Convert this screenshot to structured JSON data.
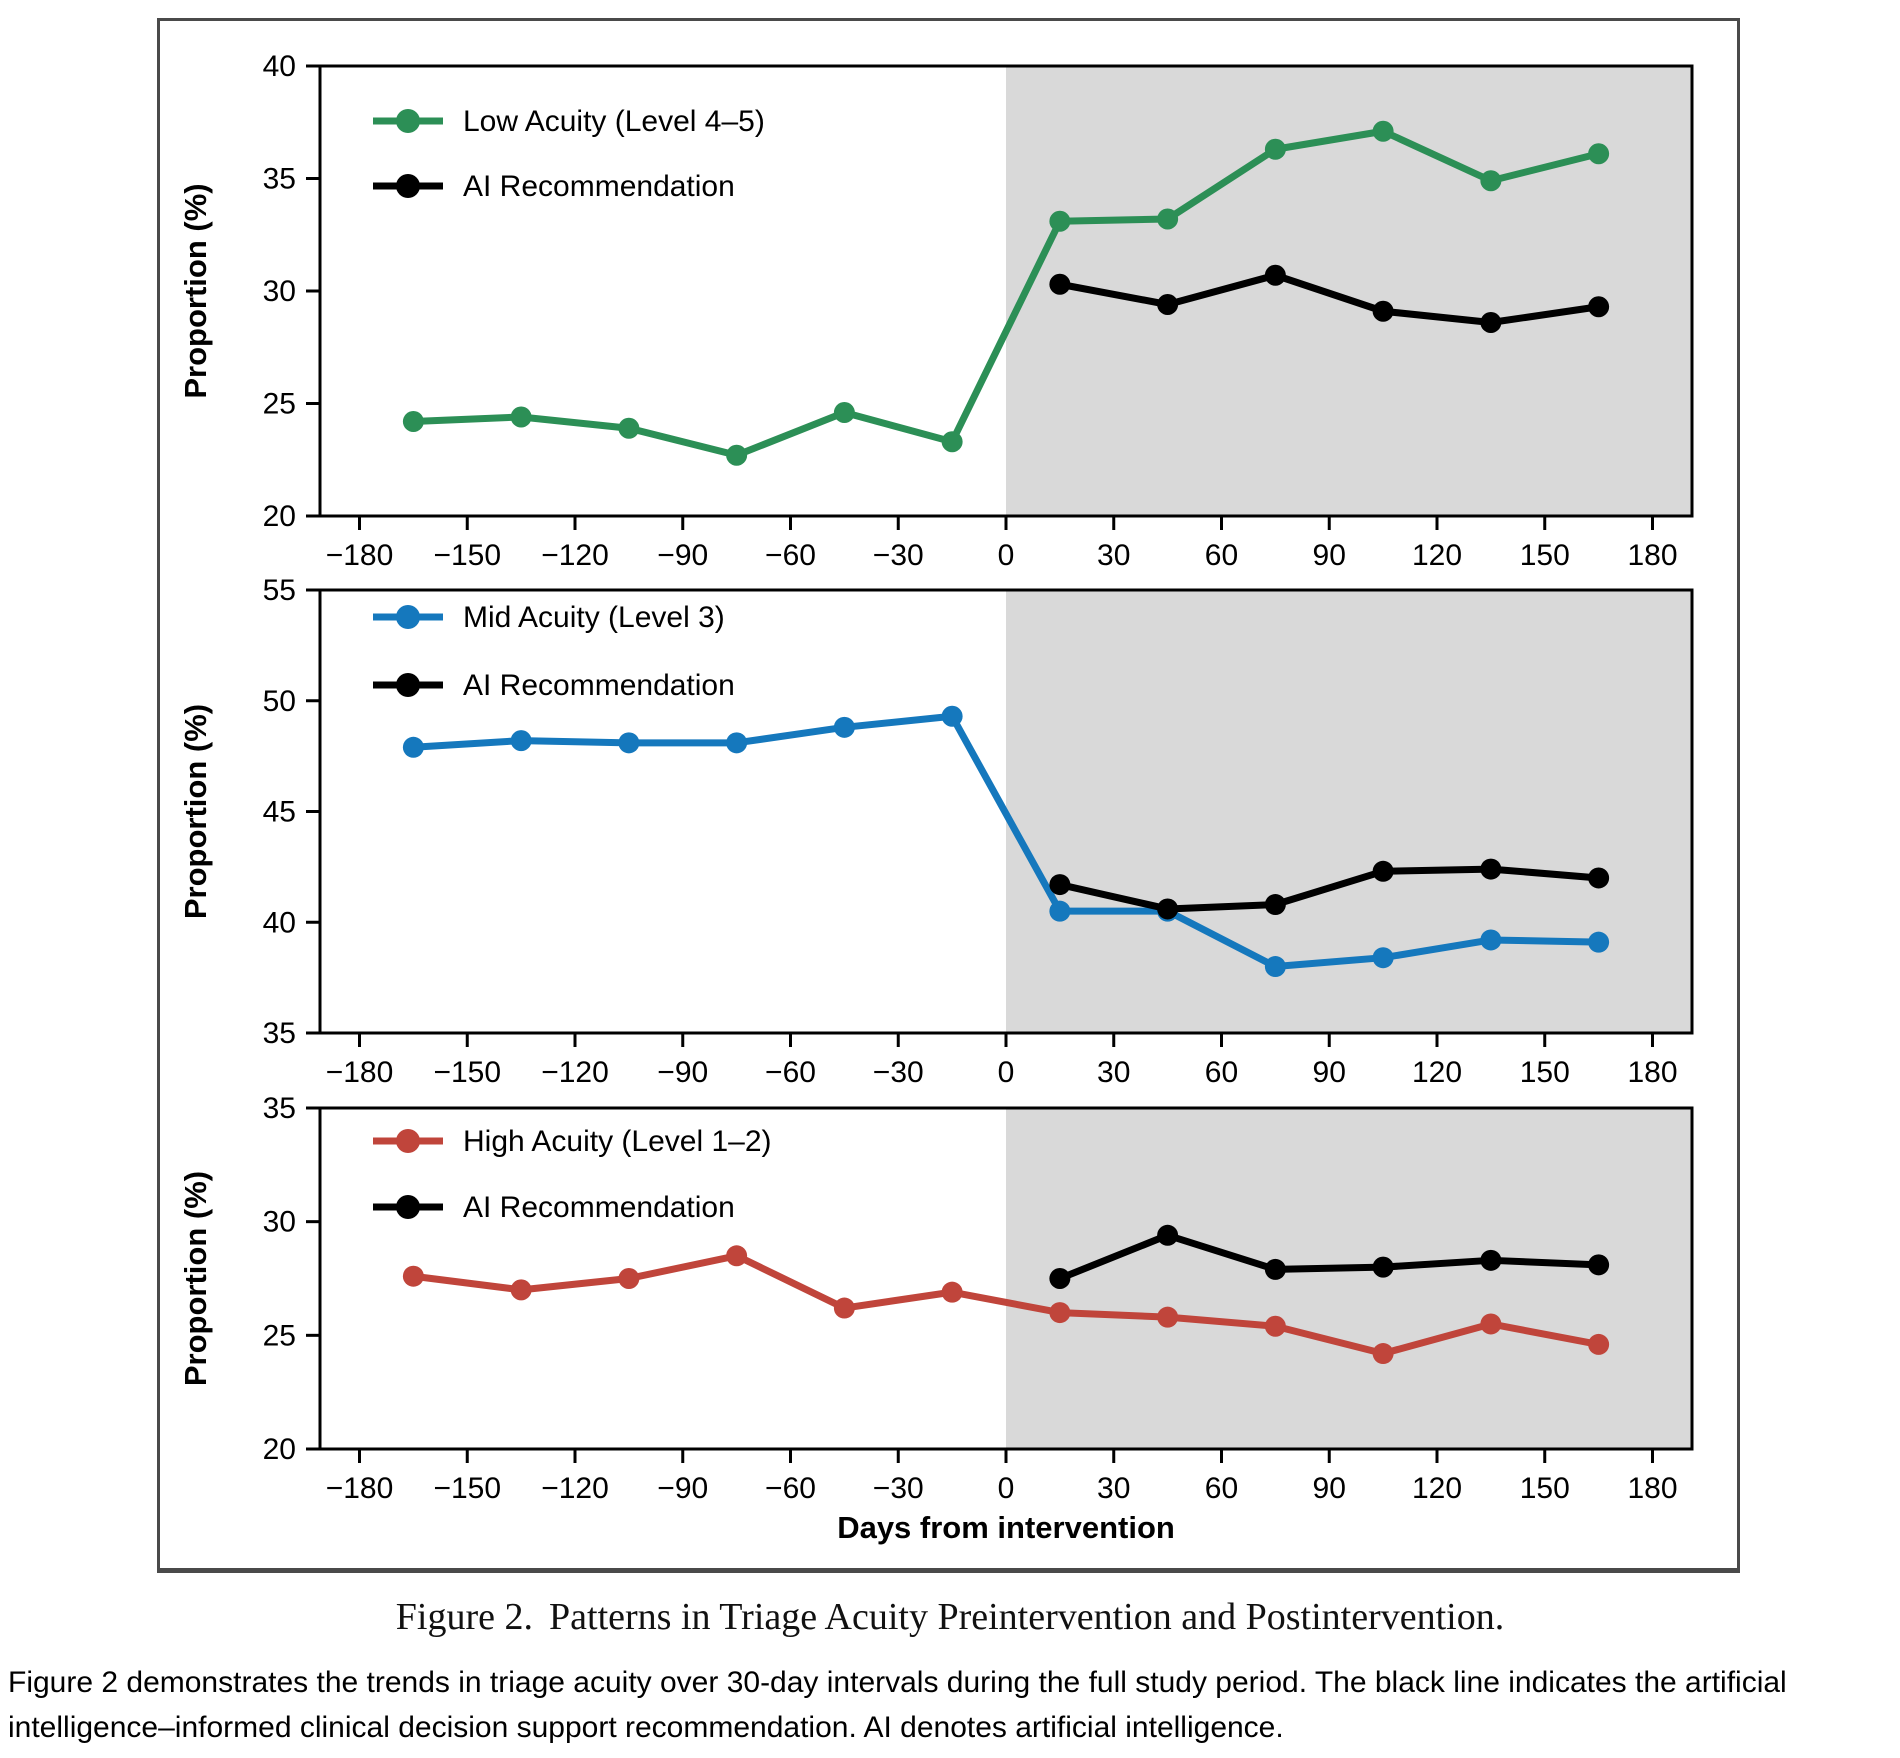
{
  "caption": {
    "label": "Figure 2.",
    "title": "Patterns in Triage Acuity Preintervention and Postintervention."
  },
  "footnote": {
    "lines": [
      "Figure 2 demonstrates the trends in triage acuity over 30-day intervals during the full study period. The black line indicates the artificial",
      "intelligence–informed clinical decision support recommendation. AI denotes artificial intelligence."
    ]
  },
  "colors": {
    "low_acuity_green": "#2c8f56",
    "mid_acuity_blue": "#1578bd",
    "high_acuity_red": "#c0453b",
    "ai_black": "#000000",
    "postintervention_shade": "#d9d9d9"
  },
  "chart_data": [
    {
      "type": "line",
      "ylabel": "Proportion (%)",
      "xlabel": "",
      "ylim": [
        20,
        40
      ],
      "yticks": [
        20,
        25,
        30,
        35,
        40
      ],
      "xlim": [
        -191,
        191
      ],
      "xticks": [
        -180,
        -150,
        -120,
        -90,
        -60,
        -30,
        0,
        30,
        60,
        90,
        120,
        150,
        180
      ],
      "shaded_region": {
        "x_from": 0,
        "x_to": 191
      },
      "legend": [
        {
          "label": "Low Acuity (Level 4–5)",
          "series": 0
        },
        {
          "label": "AI Recommendation",
          "series": 1
        }
      ],
      "series": [
        {
          "name": "Low Acuity (Level 4–5)",
          "color": "#2c8f56",
          "x": [
            -165,
            -135,
            -105,
            -75,
            -45,
            -15,
            15,
            45,
            75,
            105,
            135,
            165
          ],
          "values": [
            24.2,
            24.4,
            23.9,
            22.7,
            24.6,
            23.3,
            33.1,
            33.2,
            36.3,
            37.1,
            34.9,
            36.1
          ]
        },
        {
          "name": "AI Recommendation",
          "color": "#000000",
          "x": [
            15,
            45,
            75,
            105,
            135,
            165
          ],
          "values": [
            30.3,
            29.4,
            30.7,
            29.1,
            28.6,
            29.3
          ]
        }
      ]
    },
    {
      "type": "line",
      "ylabel": "Proportion (%)",
      "xlabel": "",
      "ylim": [
        35,
        55
      ],
      "yticks": [
        35,
        40,
        45,
        50,
        55
      ],
      "xlim": [
        -191,
        191
      ],
      "xticks": [
        -180,
        -150,
        -120,
        -90,
        -60,
        -30,
        0,
        30,
        60,
        90,
        120,
        150,
        180
      ],
      "shaded_region": {
        "x_from": 0,
        "x_to": 191
      },
      "legend": [
        {
          "label": "Mid Acuity (Level 3)",
          "series": 0
        },
        {
          "label": "AI Recommendation",
          "series": 1
        }
      ],
      "series": [
        {
          "name": "Mid Acuity (Level 3)",
          "color": "#1578bd",
          "x": [
            -165,
            -135,
            -105,
            -75,
            -45,
            -15,
            15,
            45,
            75,
            105,
            135,
            165
          ],
          "values": [
            47.9,
            48.2,
            48.1,
            48.1,
            48.8,
            49.3,
            40.5,
            40.5,
            38.0,
            38.4,
            39.2,
            39.1
          ]
        },
        {
          "name": "AI Recommendation",
          "color": "#000000",
          "x": [
            15,
            45,
            75,
            105,
            135,
            165
          ],
          "values": [
            41.7,
            40.6,
            40.8,
            42.3,
            42.4,
            42.0
          ]
        }
      ]
    },
    {
      "type": "line",
      "ylabel": "Proportion (%)",
      "xlabel": "Days from intervention",
      "ylim": [
        20,
        35
      ],
      "yticks": [
        20,
        25,
        30,
        35
      ],
      "xlim": [
        -191,
        191
      ],
      "xticks": [
        -180,
        -150,
        -120,
        -90,
        -60,
        -30,
        0,
        30,
        60,
        90,
        120,
        150,
        180
      ],
      "shaded_region": {
        "x_from": 0,
        "x_to": 191
      },
      "legend": [
        {
          "label": "High Acuity (Level 1–2)",
          "series": 0
        },
        {
          "label": "AI Recommendation",
          "series": 1
        }
      ],
      "series": [
        {
          "name": "High Acuity (Level 1–2)",
          "color": "#c0453b",
          "x": [
            -165,
            -135,
            -105,
            -75,
            -45,
            -15,
            15,
            45,
            75,
            105,
            135,
            165
          ],
          "values": [
            27.6,
            27.0,
            27.5,
            28.5,
            26.2,
            26.9,
            26.0,
            25.8,
            25.4,
            24.2,
            25.5,
            24.6
          ]
        },
        {
          "name": "AI Recommendation",
          "color": "#000000",
          "x": [
            15,
            45,
            75,
            105,
            135,
            165
          ],
          "values": [
            27.5,
            29.4,
            27.9,
            28.0,
            28.3,
            28.1
          ]
        }
      ]
    }
  ]
}
